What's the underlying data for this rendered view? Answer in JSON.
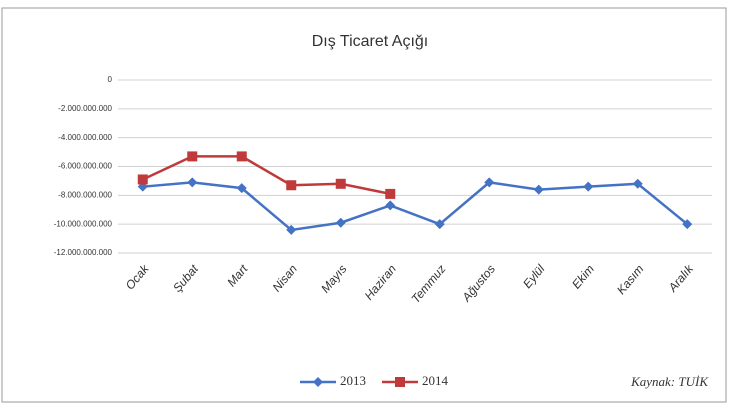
{
  "chart_data": {
    "type": "line",
    "title": "Dış Ticaret Açığı",
    "categories": [
      "Ocak",
      "Şubat",
      "Mart",
      "Nisan",
      "Mayıs",
      "Haziran",
      "Temmuz",
      "Ağustos",
      "Eylül",
      "Ekim",
      "Kasım",
      "Aralık"
    ],
    "series": [
      {
        "name": "2013",
        "color": "#4472c4",
        "marker": "diamond",
        "values": [
          -7400000000,
          -7100000000,
          -7500000000,
          -10400000000,
          -9900000000,
          -8700000000,
          -10000000000,
          -7100000000,
          -7600000000,
          -7400000000,
          -7200000000,
          -10000000000
        ]
      },
      {
        "name": "2014",
        "color": "#c0393b",
        "marker": "square",
        "values": [
          -6900000000,
          -5300000000,
          -5300000000,
          -7300000000,
          -7200000000,
          -7900000000,
          null,
          null,
          null,
          null,
          null,
          null
        ]
      }
    ],
    "ylim": [
      -12000000000,
      0
    ],
    "yticks": [
      0,
      {
        "value": -2000000000,
        "label": "-2.000.000.000"
      },
      {
        "value": -4000000000,
        "label": "-4.000.000.000"
      },
      {
        "value": -6000000000,
        "label": "-6.000.000.000"
      },
      {
        "value": -8000000000,
        "label": "-8.000.000.000"
      },
      {
        "value": -10000000000,
        "label": "-10.000.000.000"
      },
      {
        "value": -12000000000,
        "label": "-12.000.000.000"
      }
    ],
    "grid": true,
    "legend": "bottom",
    "annotation": "Kaynak: TUİK"
  }
}
